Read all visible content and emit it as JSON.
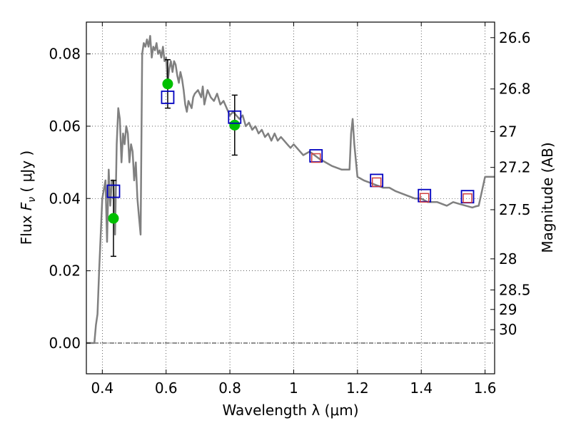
{
  "chart_data": {
    "type": "scatter",
    "xlabel": "Wavelength  λ (μm)",
    "ylabel": "Flux  Fν  ( μJy )",
    "ylabel_parts": {
      "prefix": "Flux  ",
      "symbol": "F",
      "subscript": "ν",
      "suffix": "  ( μJy )"
    },
    "y2label": "Magnitude (AB)",
    "xlim": [
      0.35,
      1.63
    ],
    "ylim": [
      -0.0085,
      0.0888
    ],
    "grid": true,
    "x_ticks": [
      0.4,
      0.6,
      0.8,
      1.0,
      1.2,
      1.4,
      1.6
    ],
    "x_tick_labels": [
      "0.4",
      "0.6",
      "0.8",
      "1",
      "1.2",
      "1.4",
      "1.6"
    ],
    "y_ticks": [
      0.0,
      0.02,
      0.04,
      0.06,
      0.08
    ],
    "y_tick_labels": [
      "0.00",
      "0.02",
      "0.04",
      "0.06",
      "0.08"
    ],
    "magnitude_ticks": [
      {
        "label": "26.6",
        "flux": 0.0845
      },
      {
        "label": "26.8",
        "flux": 0.0703
      },
      {
        "label": "27",
        "flux": 0.0585
      },
      {
        "label": "27.2",
        "flux": 0.0486
      },
      {
        "label": "27.5",
        "flux": 0.0369
      },
      {
        "label": "28",
        "flux": 0.0233
      },
      {
        "label": "28.5",
        "flux": 0.0147
      },
      {
        "label": "29",
        "flux": 0.0093
      },
      {
        "label": "30",
        "flux": 0.0037
      }
    ],
    "series": [
      {
        "kind": "line",
        "color": "#808080",
        "x": [
          0.35,
          0.375,
          0.38,
          0.385,
          0.39,
          0.4,
          0.41,
          0.415,
          0.42,
          0.425,
          0.43,
          0.435,
          0.44,
          0.445,
          0.45,
          0.455,
          0.46,
          0.465,
          0.47,
          0.475,
          0.48,
          0.485,
          0.49,
          0.495,
          0.5,
          0.505,
          0.51,
          0.515,
          0.52,
          0.525,
          0.53,
          0.535,
          0.54,
          0.545,
          0.55,
          0.555,
          0.56,
          0.565,
          0.57,
          0.575,
          0.58,
          0.585,
          0.59,
          0.595,
          0.6,
          0.605,
          0.61,
          0.615,
          0.62,
          0.625,
          0.63,
          0.635,
          0.64,
          0.645,
          0.65,
          0.655,
          0.66,
          0.665,
          0.67,
          0.675,
          0.68,
          0.685,
          0.69,
          0.7,
          0.71,
          0.715,
          0.72,
          0.73,
          0.74,
          0.75,
          0.76,
          0.77,
          0.78,
          0.79,
          0.8,
          0.81,
          0.82,
          0.83,
          0.84,
          0.85,
          0.86,
          0.87,
          0.88,
          0.89,
          0.9,
          0.91,
          0.92,
          0.93,
          0.94,
          0.95,
          0.96,
          0.97,
          0.98,
          0.99,
          1.0,
          1.01,
          1.02,
          1.03,
          1.05,
          1.08,
          1.1,
          1.12,
          1.15,
          1.175,
          1.18,
          1.185,
          1.19,
          1.2,
          1.22,
          1.25,
          1.28,
          1.3,
          1.32,
          1.35,
          1.38,
          1.4,
          1.42,
          1.45,
          1.48,
          1.5,
          1.52,
          1.54,
          1.56,
          1.57,
          1.58,
          1.6,
          1.62,
          1.63
        ],
        "y": [
          0.0,
          0.0,
          0.005,
          0.008,
          0.02,
          0.04,
          0.045,
          0.028,
          0.048,
          0.038,
          0.045,
          0.045,
          0.03,
          0.055,
          0.065,
          0.062,
          0.05,
          0.058,
          0.055,
          0.06,
          0.058,
          0.05,
          0.055,
          0.053,
          0.045,
          0.05,
          0.04,
          0.035,
          0.03,
          0.08,
          0.083,
          0.082,
          0.084,
          0.082,
          0.085,
          0.079,
          0.082,
          0.081,
          0.083,
          0.08,
          0.081,
          0.079,
          0.082,
          0.078,
          0.079,
          0.072,
          0.076,
          0.078,
          0.075,
          0.078,
          0.077,
          0.074,
          0.072,
          0.075,
          0.073,
          0.07,
          0.066,
          0.064,
          0.067,
          0.066,
          0.065,
          0.068,
          0.069,
          0.07,
          0.068,
          0.071,
          0.066,
          0.07,
          0.068,
          0.067,
          0.069,
          0.066,
          0.067,
          0.065,
          0.063,
          0.064,
          0.063,
          0.062,
          0.063,
          0.06,
          0.061,
          0.059,
          0.06,
          0.058,
          0.059,
          0.057,
          0.058,
          0.056,
          0.058,
          0.056,
          0.057,
          0.056,
          0.055,
          0.054,
          0.055,
          0.054,
          0.053,
          0.052,
          0.053,
          0.051,
          0.05,
          0.049,
          0.048,
          0.048,
          0.058,
          0.062,
          0.055,
          0.046,
          0.045,
          0.044,
          0.043,
          0.043,
          0.042,
          0.041,
          0.04,
          0.04,
          0.039,
          0.039,
          0.038,
          0.039,
          0.0385,
          0.038,
          0.0375,
          0.0378,
          0.038,
          0.046,
          0.046,
          0.046
        ]
      },
      {
        "kind": "errorbar_points",
        "marker": "filled-circle",
        "color": "#00c000",
        "points": [
          {
            "x": 0.435,
            "y": 0.0345,
            "err_lo": 0.0105,
            "err_hi": 0.0105
          },
          {
            "x": 0.605,
            "y": 0.0717,
            "err_lo": 0.0067,
            "err_hi": 0.0067
          },
          {
            "x": 0.815,
            "y": 0.0603,
            "err_lo": 0.0083,
            "err_hi": 0.0083
          }
        ]
      },
      {
        "kind": "points",
        "marker": "open-square",
        "color": "#0000c0",
        "x": [
          0.435,
          0.605,
          0.815,
          1.07,
          1.26,
          1.41,
          1.545
        ],
        "y": [
          0.042,
          0.068,
          0.0625,
          0.0518,
          0.045,
          0.0408,
          0.0405
        ]
      },
      {
        "kind": "points",
        "marker": "small-open-square",
        "color": "#d04040",
        "x": [
          1.07,
          1.26,
          1.41,
          1.545
        ],
        "y": [
          0.0512,
          0.0445,
          0.0402,
          0.0401
        ]
      }
    ]
  }
}
